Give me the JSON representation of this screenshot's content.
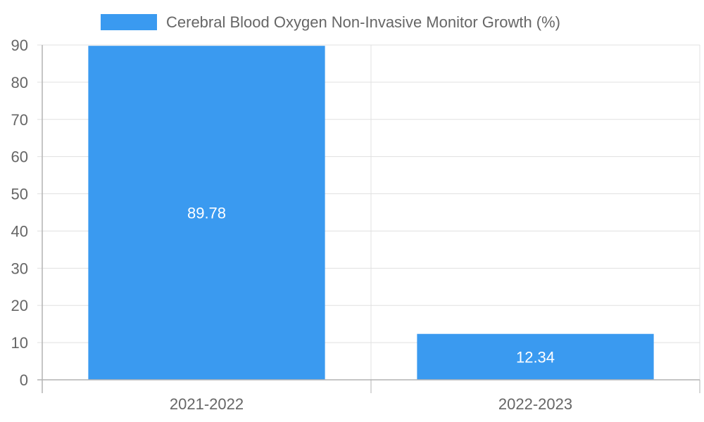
{
  "chart_data": {
    "type": "bar",
    "title": "",
    "xlabel": "",
    "ylabel": "",
    "categories": [
      "2021-2022",
      "2022-2023"
    ],
    "series": [
      {
        "name": "Cerebral Blood Oxygen Non-Invasive Monitor Growth (%)",
        "values": [
          89.78,
          12.34
        ],
        "data_labels": [
          "89.78",
          "12.34"
        ],
        "color": "#3a9af0"
      }
    ],
    "ylim": [
      0,
      90
    ],
    "yticks": [
      0,
      10,
      20,
      30,
      40,
      50,
      60,
      70,
      80,
      90
    ],
    "ytick_labels": [
      "0",
      "10",
      "20",
      "30",
      "40",
      "50",
      "60",
      "70",
      "80",
      "90"
    ],
    "grid": true,
    "legend_position": "top-center"
  },
  "colors": {
    "bar": "#3a9af0",
    "grid": "#e1e1e1",
    "axis": "#b3b3b3",
    "text": "#666666",
    "label": "#ffffff"
  }
}
